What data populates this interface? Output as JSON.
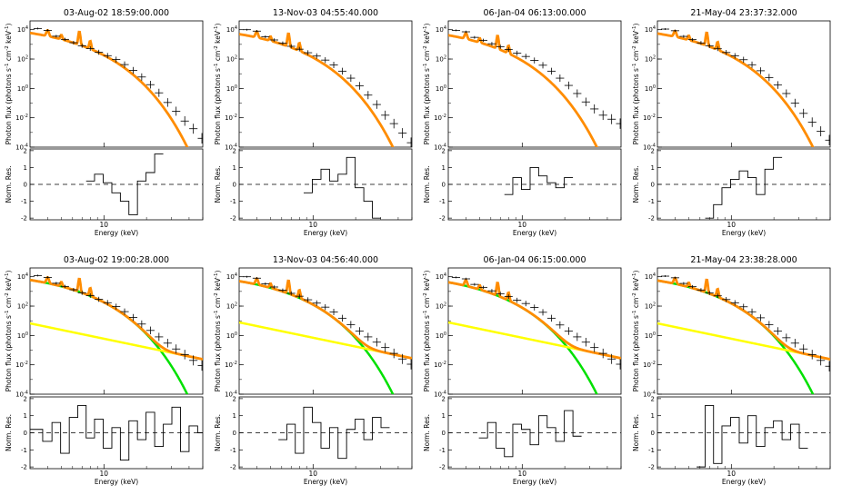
{
  "chart_data": {
    "type": "line",
    "layout": "2 rows x 4 columns of spectral fit panels, each with a residual sub-panel",
    "x_axis": {
      "label": "Energy (keV)",
      "scale": "log",
      "ticks": [
        10
      ],
      "range_keV": [
        3,
        50
      ]
    },
    "y_axis_top": {
      "label_parts": [
        "Photon flux (photons s",
        "-1",
        " cm",
        "-2",
        " keV",
        "-1",
        ")"
      ],
      "scale": "log",
      "ticks": [
        {
          "mantissa": "10",
          "exp": "4"
        },
        {
          "mantissa": "10",
          "exp": "2"
        },
        {
          "mantissa": "10",
          "exp": "0"
        },
        {
          "mantissa": "10",
          "exp": "-2"
        },
        {
          "mantissa": "10",
          "exp": "-4"
        }
      ],
      "tick_values": [
        10000,
        100,
        1,
        0.01,
        0.0001
      ]
    },
    "y_axis_bottom": {
      "label": "Norm. Res.",
      "ticks": [
        "2",
        "1",
        "0",
        "-1",
        "-2"
      ],
      "range": [
        -2,
        2
      ]
    },
    "colors": {
      "total_model": "#ff8c00",
      "thermal": "#00e000",
      "nonthermal": "#ffff00",
      "data": "#000000"
    },
    "panels": [
      {
        "title": "03-Aug-02 18:59:00.000",
        "components": [
          "total"
        ],
        "data_E": [
          3.4,
          4.0,
          4.6,
          5.3,
          6.1,
          7.0,
          8.0,
          9.2,
          10.6,
          12.2,
          14.0,
          16.1,
          18.5,
          21.3,
          24.5,
          28.2,
          32.4,
          37.3,
          42.9,
          49.3
        ],
        "data_F": [
          12000,
          9000,
          3600,
          2200,
          1300,
          800,
          520,
          290,
          170,
          92,
          42,
          17,
          6,
          1.8,
          0.5,
          0.11,
          0.028,
          0.006,
          0.0018,
          0.0004
        ],
        "model_thermal": {
          "F0": 6000,
          "kT": 2.0
        },
        "residual_steps": [
          null,
          null,
          null,
          null,
          null,
          null,
          0.2,
          0.6,
          0.1,
          -0.5,
          -1.0,
          -1.8,
          0.2,
          0.7,
          1.8,
          null,
          null,
          null,
          null,
          null
        ]
      },
      {
        "title": "13-Nov-03 04:55:40.000",
        "components": [
          "total"
        ],
        "data_E": [
          3.4,
          4.0,
          4.6,
          5.3,
          6.1,
          7.0,
          8.0,
          9.2,
          10.6,
          12.2,
          14.0,
          16.1,
          18.5,
          21.3,
          24.5,
          28.2,
          32.4,
          37.3,
          42.9,
          49.3
        ],
        "data_F": [
          10000,
          8000,
          3300,
          2000,
          1200,
          740,
          470,
          270,
          160,
          85,
          40,
          15,
          5,
          1.5,
          0.35,
          0.08,
          0.015,
          0.004,
          0.0009,
          0.0002
        ],
        "model_thermal": {
          "F0": 5000,
          "kT": 1.9
        },
        "residual_steps": [
          null,
          null,
          null,
          null,
          null,
          null,
          null,
          -0.5,
          0.3,
          0.9,
          0.2,
          0.6,
          1.6,
          -0.2,
          -1.0,
          -2.0,
          null,
          null,
          null,
          null
        ]
      },
      {
        "title": "06-Jan-04 06:13:00.000",
        "components": [
          "total"
        ],
        "data_E": [
          3.4,
          4.0,
          4.6,
          5.3,
          6.1,
          7.0,
          8.0,
          9.2,
          10.6,
          12.2,
          14.0,
          16.1,
          18.5,
          21.3,
          24.5,
          28.2,
          32.4,
          37.3,
          42.9,
          49.3
        ],
        "data_F": [
          9000,
          7200,
          3000,
          1900,
          1100,
          700,
          440,
          250,
          150,
          80,
          38,
          15,
          5,
          1.6,
          0.45,
          0.12,
          0.04,
          0.015,
          0.008,
          0.004
        ],
        "model_thermal": {
          "F0": 4200,
          "kT": 1.75
        },
        "residual_steps": [
          null,
          null,
          null,
          null,
          null,
          null,
          -0.6,
          0.4,
          -0.3,
          1.0,
          0.5,
          0.1,
          -0.2,
          0.4,
          null,
          null,
          null,
          null,
          null,
          null
        ]
      },
      {
        "title": "21-May-04 23:37:32.000",
        "components": [
          "total"
        ],
        "data_E": [
          3.4,
          4.0,
          4.6,
          5.3,
          6.1,
          7.0,
          8.0,
          9.2,
          10.6,
          12.2,
          14.0,
          16.1,
          18.5,
          21.3,
          24.5,
          28.2,
          32.4,
          37.3,
          42.9,
          49.3
        ],
        "data_F": [
          11000,
          8500,
          3500,
          2100,
          1250,
          780,
          500,
          280,
          165,
          90,
          41,
          16,
          5.5,
          1.7,
          0.45,
          0.1,
          0.02,
          0.005,
          0.0012,
          0.0003
        ],
        "model_thermal": {
          "F0": 5500,
          "kT": 1.95
        },
        "residual_steps": [
          null,
          null,
          null,
          null,
          null,
          -2.0,
          -1.2,
          -0.2,
          0.3,
          0.8,
          0.4,
          -0.6,
          0.9,
          1.6,
          null,
          null,
          null,
          null,
          null,
          null
        ]
      },
      {
        "title": "03-Aug-02 19:00:28.000",
        "components": [
          "total",
          "thermal",
          "nonthermal"
        ],
        "data_E": [
          3.4,
          4.0,
          4.6,
          5.3,
          6.1,
          7.0,
          8.0,
          9.2,
          10.6,
          12.2,
          14.0,
          16.1,
          18.5,
          21.3,
          24.5,
          28.2,
          32.4,
          37.3,
          42.9,
          49.3
        ],
        "data_F": [
          12000,
          9000,
          3600,
          2200,
          1300,
          800,
          520,
          290,
          170,
          92,
          42,
          17,
          6,
          2.2,
          0.8,
          0.3,
          0.12,
          0.05,
          0.02,
          0.009
        ],
        "model_thermal": {
          "F0": 6000,
          "kT": 2.0
        },
        "model_nonthermal": {
          "F10": 0.6,
          "gamma": 2.0
        },
        "residual_steps": [
          0.2,
          -0.5,
          0.6,
          -1.2,
          0.9,
          1.6,
          -0.3,
          0.8,
          -0.9,
          0.3,
          -1.6,
          0.7,
          -0.4,
          1.2,
          -0.8,
          0.5,
          1.5,
          -1.1,
          0.4,
          0.0
        ]
      },
      {
        "title": "13-Nov-03 04:56:40.000",
        "components": [
          "total",
          "thermal",
          "nonthermal"
        ],
        "data_E": [
          3.4,
          4.0,
          4.6,
          5.3,
          6.1,
          7.0,
          8.0,
          9.2,
          10.6,
          12.2,
          14.0,
          16.1,
          18.5,
          21.3,
          24.5,
          28.2,
          32.4,
          37.3,
          42.9,
          49.3
        ],
        "data_F": [
          10000,
          8000,
          3300,
          2000,
          1200,
          740,
          470,
          270,
          160,
          85,
          40,
          15,
          5.5,
          2.0,
          0.8,
          0.35,
          0.15,
          0.06,
          0.025,
          0.011
        ],
        "model_thermal": {
          "F0": 5000,
          "kT": 1.9
        },
        "model_nonthermal": {
          "F10": 0.7,
          "gamma": 2.0
        },
        "residual_steps": [
          null,
          null,
          null,
          null,
          -0.4,
          0.5,
          -1.2,
          1.5,
          0.6,
          -0.9,
          0.3,
          -1.5,
          0.2,
          0.8,
          -0.4,
          0.9,
          0.3,
          null,
          null,
          null
        ]
      },
      {
        "title": "06-Jan-04 06:15:00.000",
        "components": [
          "total",
          "thermal",
          "nonthermal"
        ],
        "data_E": [
          3.4,
          4.0,
          4.6,
          5.3,
          6.1,
          7.0,
          8.0,
          9.2,
          10.6,
          12.2,
          14.0,
          16.1,
          18.5,
          21.3,
          24.5,
          28.2,
          32.4,
          37.3,
          42.9,
          49.3
        ],
        "data_F": [
          9000,
          7200,
          3000,
          1900,
          1100,
          700,
          440,
          250,
          150,
          80,
          38,
          15,
          5.2,
          2.0,
          0.8,
          0.35,
          0.15,
          0.06,
          0.025,
          0.011
        ],
        "model_thermal": {
          "F0": 4200,
          "kT": 1.75
        },
        "model_nonthermal": {
          "F10": 0.7,
          "gamma": 2.0
        },
        "residual_steps": [
          null,
          null,
          null,
          -0.3,
          0.6,
          -0.9,
          -1.4,
          0.5,
          0.2,
          -0.7,
          1.0,
          0.3,
          -0.5,
          1.3,
          -0.2,
          null,
          null,
          null,
          null,
          null
        ]
      },
      {
        "title": "21-May-04 23:38:28.000",
        "components": [
          "total",
          "thermal",
          "nonthermal"
        ],
        "data_E": [
          3.4,
          4.0,
          4.6,
          5.3,
          6.1,
          7.0,
          8.0,
          9.2,
          10.6,
          12.2,
          14.0,
          16.1,
          18.5,
          21.3,
          24.5,
          28.2,
          32.4,
          37.3,
          42.9,
          49.3
        ],
        "data_F": [
          11000,
          8500,
          3500,
          2100,
          1250,
          780,
          500,
          280,
          165,
          90,
          41,
          16,
          5.5,
          2.0,
          0.7,
          0.3,
          0.12,
          0.05,
          0.02,
          0.008
        ],
        "model_thermal": {
          "F0": 5500,
          "kT": 1.95
        },
        "model_nonthermal": {
          "F10": 0.6,
          "gamma": 2.0
        },
        "residual_steps": [
          null,
          null,
          null,
          null,
          -2.0,
          1.6,
          -1.8,
          0.4,
          0.9,
          -0.6,
          1.0,
          -0.8,
          0.3,
          0.7,
          -0.4,
          0.5,
          -0.9,
          null,
          null,
          null
        ]
      }
    ]
  }
}
